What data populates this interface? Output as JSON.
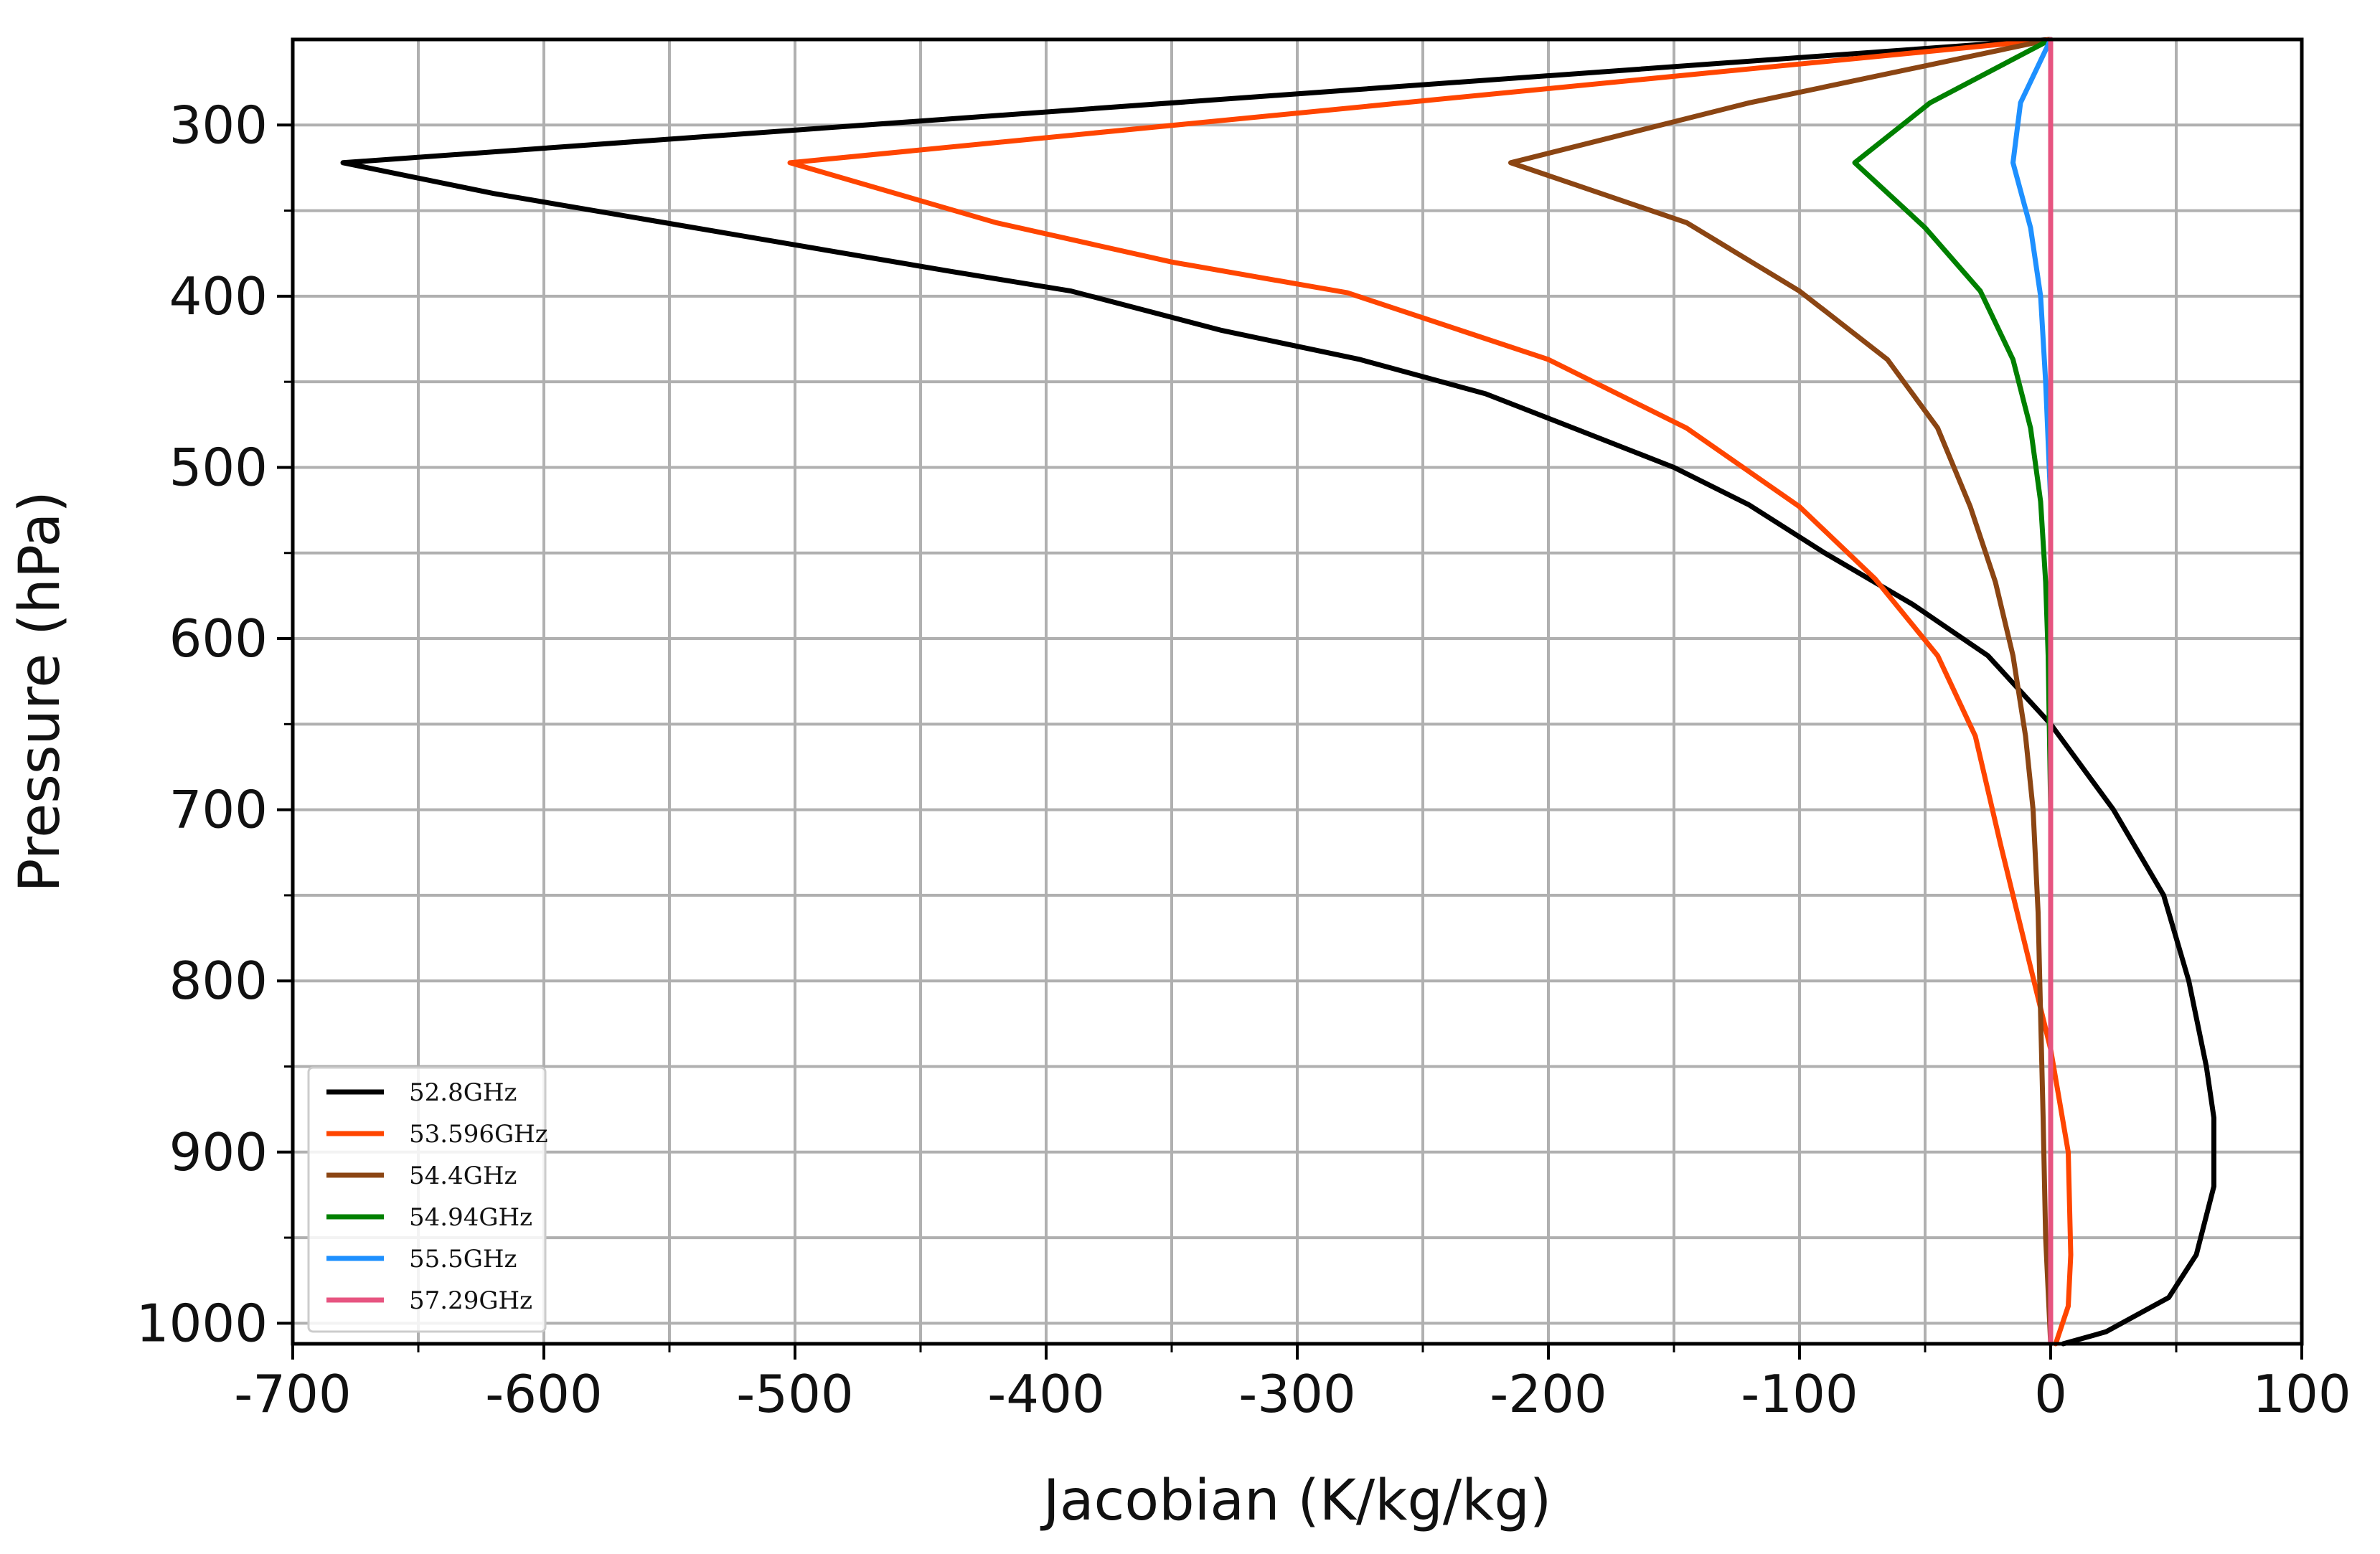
{
  "chart_data": {
    "type": "line",
    "title": "",
    "xlabel": "Jacobian (K/kg/kg)",
    "ylabel": "Pressure (hPa)",
    "xlim": [
      -700,
      100
    ],
    "ylim": [
      250,
      1012
    ],
    "y_inverted": true,
    "grid": true,
    "x_major_ticks": [
      -700,
      -600,
      -500,
      -400,
      -300,
      -200,
      -100,
      0,
      100
    ],
    "x_tick_labels": [
      "-700",
      "-600",
      "-500",
      "-400",
      "-300",
      "-200",
      "-100",
      "0",
      "100"
    ],
    "x_minor_ticks": [
      -650,
      -550,
      -450,
      -350,
      -250,
      -150,
      -50,
      50
    ],
    "y_major_ticks": [
      300,
      400,
      500,
      600,
      700,
      800,
      900,
      1000
    ],
    "y_tick_labels": [
      "300",
      "400",
      "500",
      "600",
      "700",
      "800",
      "900",
      "1000"
    ],
    "y_minor_ticks": [
      350,
      450,
      550,
      650,
      750,
      850,
      950
    ],
    "legend_position": "bottom-left",
    "series": [
      {
        "name": "52.8GHz",
        "color": "#000000",
        "x": [
          0,
          -680,
          -620,
          -560,
          -500,
          -440,
          -390,
          -330,
          -275,
          -225,
          -190,
          -150,
          -120,
          -90,
          -55,
          -25,
          0,
          25,
          45,
          55,
          62,
          65,
          65,
          58,
          47,
          22,
          5
        ],
        "y": [
          250,
          322,
          340,
          355,
          370,
          385,
          397,
          420,
          437,
          457,
          477,
          500,
          522,
          550,
          580,
          610,
          650,
          700,
          750,
          800,
          850,
          880,
          920,
          960,
          985,
          1005,
          1012
        ]
      },
      {
        "name": "53.596GHz",
        "color": "#ff4500",
        "x": [
          0,
          -502,
          -420,
          -350,
          -280,
          -200,
          -145,
          -100,
          -70,
          -45,
          -30,
          -20,
          -10,
          0,
          7,
          8,
          7,
          2
        ],
        "y": [
          250,
          322,
          357,
          380,
          398,
          437,
          477,
          523,
          565,
          610,
          657,
          720,
          780,
          840,
          900,
          960,
          990,
          1012
        ]
      },
      {
        "name": "54.4GHz",
        "color": "#8b4513",
        "x": [
          0,
          -120,
          -215,
          -145,
          -100,
          -65,
          -45,
          -32,
          -22,
          -15,
          -10,
          -7,
          -5,
          -4,
          -3,
          -2,
          0
        ],
        "y": [
          250,
          287,
          322,
          357,
          397,
          437,
          477,
          523,
          567,
          610,
          657,
          700,
          760,
          820,
          880,
          950,
          1012
        ]
      },
      {
        "name": "54.94GHz",
        "color": "#008000",
        "x": [
          0,
          -48,
          -78,
          -50,
          -28,
          -15,
          -8,
          -4,
          -2,
          -1,
          0,
          0
        ],
        "y": [
          250,
          287,
          322,
          360,
          397,
          437,
          477,
          520,
          567,
          610,
          700,
          1012
        ]
      },
      {
        "name": "55.5GHz",
        "color": "#1e90ff",
        "x": [
          0,
          -12,
          -15,
          -8,
          -4,
          -2,
          0,
          0
        ],
        "y": [
          250,
          287,
          322,
          360,
          400,
          450,
          520,
          1012
        ]
      },
      {
        "name": "57.29GHz",
        "color": "#e75480",
        "x": [
          0,
          0,
          0
        ],
        "y": [
          250,
          600,
          1012
        ]
      }
    ]
  }
}
